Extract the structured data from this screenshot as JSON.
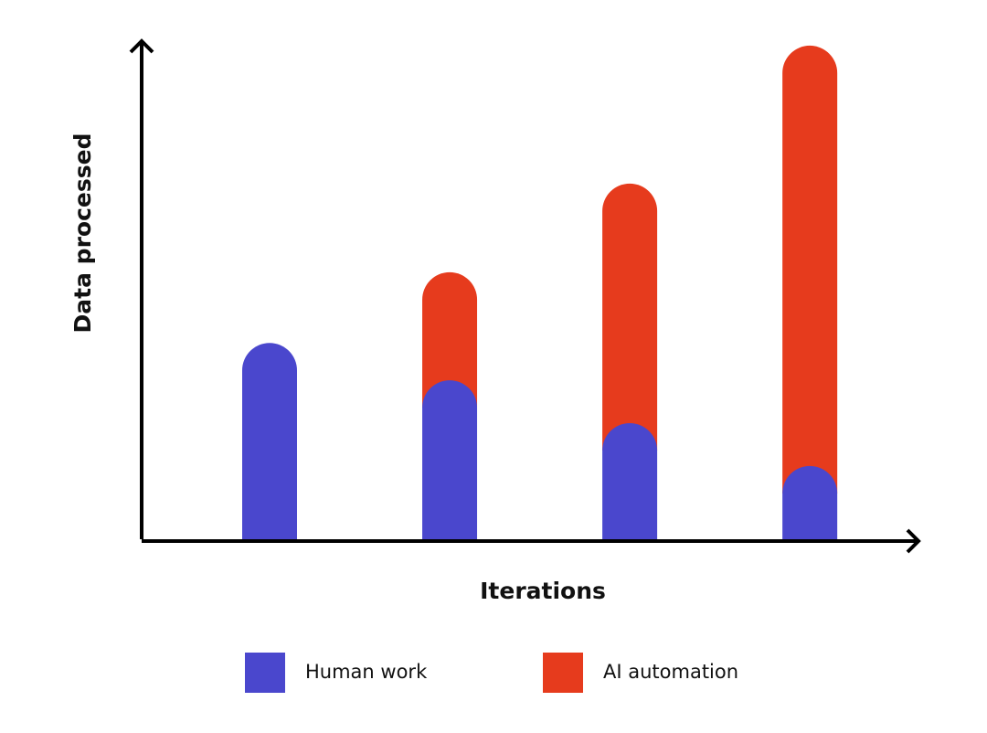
{
  "chart_data": {
    "type": "bar",
    "stacked": true,
    "x_label": "Iterations",
    "y_label": "Data processed",
    "categories": [
      null,
      null,
      null,
      null
    ],
    "series": [
      {
        "name": "Human work",
        "color": "#4a47cd",
        "values": [
          39.4,
          31.9,
          23.3,
          14.7
        ]
      },
      {
        "name": "AI automation",
        "color": "#e63b1d",
        "values": [
          0,
          21.7,
          48.1,
          84.4
        ]
      }
    ],
    "ylim": [
      0,
      100
    ]
  }
}
